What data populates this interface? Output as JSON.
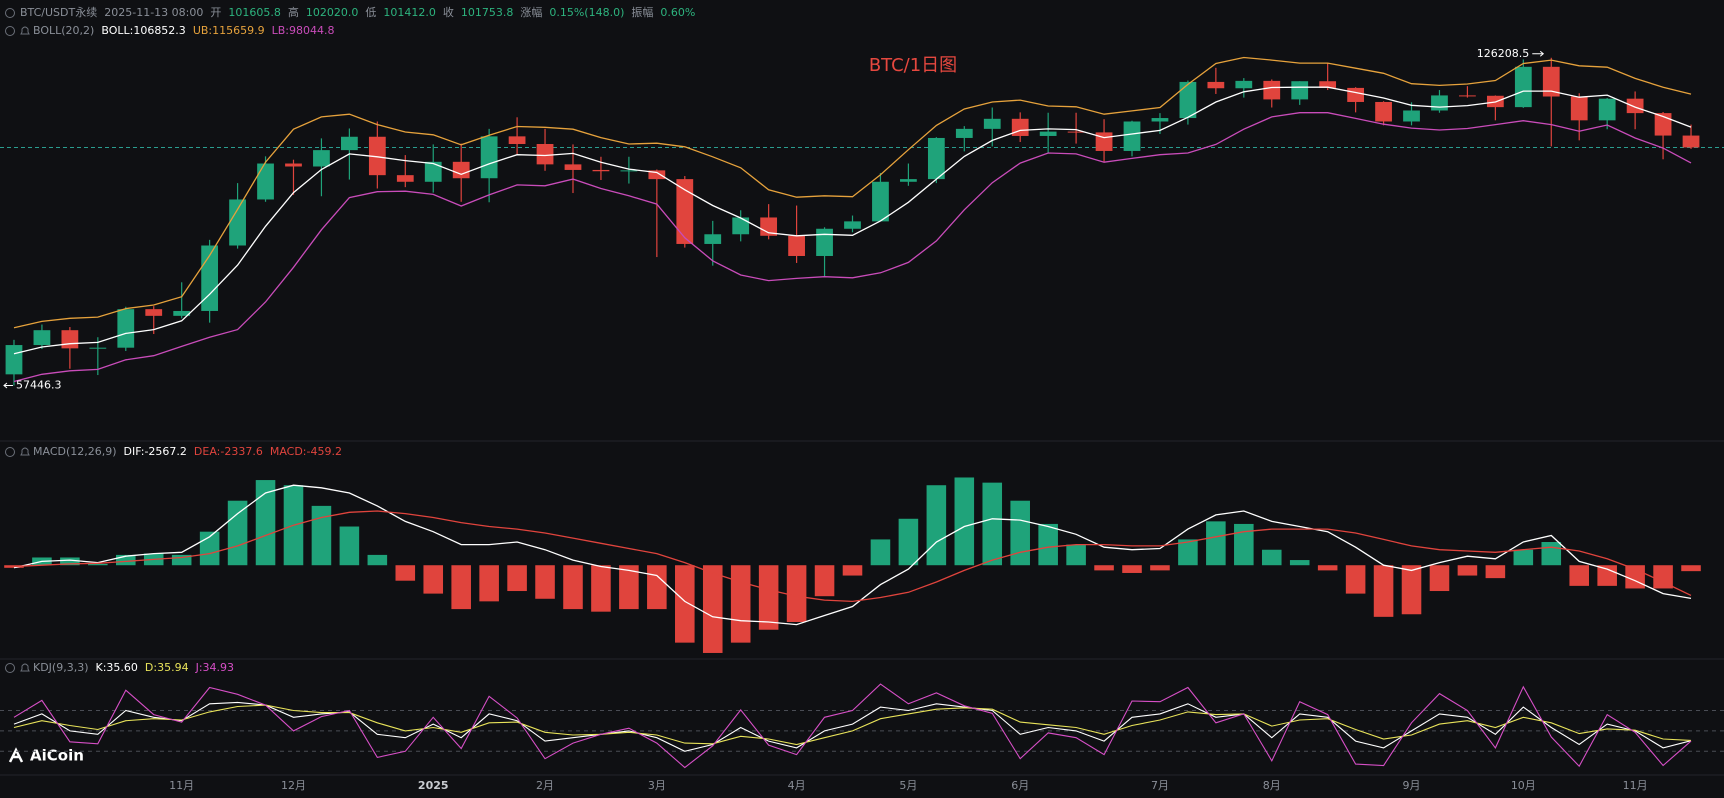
{
  "header": {
    "items": [
      {
        "text": "BTC/USDT永续",
        "color": "#8a8f98"
      },
      {
        "text": "2025-11-13 08:00",
        "color": "#8a8f98"
      },
      {
        "text": "开",
        "color": "#8a8f98"
      },
      {
        "text": "101605.8",
        "color": "#2db37e"
      },
      {
        "text": "高",
        "color": "#8a8f98"
      },
      {
        "text": "102020.0",
        "color": "#2db37e"
      },
      {
        "text": "低",
        "color": "#8a8f98"
      },
      {
        "text": "101412.0",
        "color": "#2db37e"
      },
      {
        "text": "收",
        "color": "#8a8f98"
      },
      {
        "text": "101753.8",
        "color": "#2db37e"
      },
      {
        "text": "涨幅",
        "color": "#8a8f98"
      },
      {
        "text": "0.15%(148.0)",
        "color": "#2db37e"
      },
      {
        "text": "振幅",
        "color": "#8a8f98"
      },
      {
        "text": "0.60%",
        "color": "#2db37e"
      }
    ]
  },
  "watermark": "AiCoin",
  "chart_data": [
    {
      "type": "candlestick",
      "title": "BTC/1日图",
      "title_color": "#e5483f",
      "indicator": "BOLL(20,2)",
      "readouts": [
        {
          "text": "BOLL:106852.3",
          "color": "#ffffff"
        },
        {
          "text": "UB:115659.9",
          "color": "#e6a23c"
        },
        {
          "text": "LB:98044.8",
          "color": "#c94cba"
        }
      ],
      "log": true,
      "ylim": [
        51000,
        145000
      ],
      "up_color": "#1fa37a",
      "down_color": "#e0443d",
      "last_line_color": "#2a9d8f",
      "categories": [
        null,
        null,
        null,
        null,
        null,
        null,
        "11月",
        null,
        null,
        null,
        "12月",
        null,
        null,
        null,
        null,
        "2025",
        null,
        null,
        null,
        "2月",
        null,
        null,
        null,
        "3月",
        null,
        null,
        null,
        null,
        "4月",
        null,
        null,
        null,
        "5月",
        null,
        null,
        null,
        "6月",
        null,
        null,
        null,
        null,
        "7月",
        null,
        null,
        null,
        "8月",
        null,
        null,
        null,
        null,
        "9月",
        null,
        null,
        null,
        "10月",
        null,
        null,
        null,
        "11月",
        null,
        null
      ],
      "open": [
        59000,
        63300,
        65600,
        62800,
        62900,
        69000,
        67900,
        68700,
        80400,
        89800,
        97900,
        97200,
        101100,
        104400,
        95200,
        93700,
        98300,
        94500,
        104500,
        102600,
        97700,
        96400,
        96100,
        96300,
        94300,
        80700,
        82600,
        86000,
        82300,
        78400,
        83700,
        85200,
        93700,
        94300,
        104100,
        106400,
        109000,
        104600,
        105700,
        105500,
        100900,
        108300,
        109200,
        119100,
        117300,
        119400,
        114200,
        119300,
        117400,
        113500,
        108300,
        111200,
        115300,
        115200,
        112100,
        123500,
        115000,
        108600,
        114400,
        110500,
        104700
      ],
      "high": [
        64100,
        66500,
        66100,
        64500,
        69400,
        69500,
        73600,
        81500,
        93400,
        99600,
        98800,
        104000,
        106500,
        108300,
        99900,
        102500,
        102700,
        106400,
        109400,
        106400,
        102500,
        99500,
        99500,
        96500,
        95000,
        85300,
        87500,
        88800,
        88500,
        84000,
        86400,
        95700,
        97900,
        104300,
        107100,
        112000,
        110700,
        110600,
        110600,
        108900,
        108500,
        110500,
        119500,
        123200,
        120200,
        119800,
        119300,
        124500,
        117600,
        113700,
        113400,
        116800,
        117900,
        115300,
        125700,
        126208.5,
        115900,
        114600,
        116400,
        110800,
        107500
      ],
      "low": [
        57446.3,
        62700,
        59800,
        58900,
        62400,
        65000,
        67500,
        66800,
        79800,
        89300,
        90800,
        90500,
        94200,
        92200,
        92500,
        91300,
        89300,
        89200,
        100100,
        96200,
        91200,
        94100,
        93300,
        78200,
        80000,
        76600,
        81200,
        81600,
        77100,
        74500,
        83000,
        85200,
        92800,
        93400,
        100800,
        102000,
        103100,
        100400,
        102700,
        98200,
        99600,
        105100,
        107500,
        115700,
        114700,
        112000,
        112700,
        116800,
        110700,
        107300,
        107300,
        110600,
        114700,
        108600,
        111900,
        102000,
        103500,
        106300,
        106300,
        98900,
        101400
      ],
      "close": [
        63300,
        65600,
        62800,
        62900,
        69000,
        67900,
        68700,
        80400,
        89800,
        97900,
        97200,
        101100,
        104400,
        95200,
        93700,
        98300,
        94500,
        104500,
        102600,
        97700,
        96400,
        96100,
        96300,
        94300,
        80700,
        82600,
        86000,
        82300,
        78400,
        83700,
        85200,
        93700,
        94300,
        104100,
        106400,
        109000,
        104600,
        105700,
        105500,
        100900,
        108300,
        109200,
        119100,
        117300,
        119400,
        114200,
        119300,
        117400,
        113500,
        108300,
        111200,
        115300,
        115200,
        112100,
        123500,
        115000,
        108600,
        114400,
        110500,
        104700,
        101753.8
      ],
      "series": [
        {
          "color": "#ffffff",
          "values": [
            62000,
            63000,
            63500,
            63700,
            65100,
            65700,
            67100,
            71500,
            76700,
            84200,
            91300,
            96500,
            100200,
            99500,
            98600,
            97900,
            95400,
            97800,
            100000,
            99800,
            100300,
            98200,
            96600,
            95800,
            91900,
            88500,
            85900,
            82900,
            82300,
            82600,
            82400,
            85300,
            89200,
            94300,
            99600,
            103500,
            106000,
            106400,
            106200,
            104200,
            105100,
            106000,
            109400,
            113500,
            116300,
            117500,
            117600,
            117600,
            116100,
            114600,
            112600,
            112100,
            112500,
            113500,
            116500,
            116500,
            114800,
            115400,
            112100,
            109600,
            106852.3
          ]
        },
        {
          "color": "#e6a23c",
          "values": [
            66000,
            67000,
            67500,
            67700,
            69100,
            69700,
            71100,
            78500,
            87700,
            98200,
            106300,
            109500,
            110200,
            107500,
            105600,
            104900,
            102400,
            104800,
            107000,
            106800,
            106300,
            104200,
            102600,
            102800,
            101900,
            99500,
            96900,
            91900,
            90300,
            90600,
            90400,
            95300,
            101200,
            107300,
            111600,
            113500,
            114000,
            112400,
            112200,
            110200,
            111100,
            112000,
            118400,
            124500,
            126300,
            125500,
            124600,
            124600,
            123100,
            121600,
            118600,
            118100,
            118500,
            119500,
            124500,
            125500,
            123800,
            123400,
            120100,
            117600,
            115659.9
          ]
        },
        {
          "color": "#c94cba",
          "values": [
            58000,
            59000,
            59500,
            59700,
            61100,
            61700,
            63100,
            64500,
            65700,
            70200,
            76300,
            83500,
            90200,
            91500,
            91600,
            90900,
            88400,
            90800,
            93000,
            92800,
            94300,
            92200,
            90600,
            88800,
            81900,
            77500,
            74900,
            73900,
            74300,
            74600,
            74400,
            75300,
            77200,
            81300,
            87600,
            93500,
            98000,
            100400,
            100200,
            98200,
            99100,
            100000,
            100400,
            102500,
            106300,
            109500,
            110600,
            110600,
            109100,
            107600,
            106600,
            106100,
            106500,
            107500,
            108500,
            107500,
            105800,
            107400,
            104100,
            101600,
            98044.8
          ]
        }
      ]
    },
    {
      "type": "bar",
      "indicator": "MACD(12,26,9)",
      "readouts": [
        {
          "text": "DIF:-2567.2",
          "color": "#ffffff"
        },
        {
          "text": "DEA:-2337.6",
          "color": "#e0443d"
        },
        {
          "text": "MACD:-459.2",
          "color": "#e0443d"
        }
      ],
      "ylim": [
        -7500,
        8000
      ],
      "up_color": "#1fa37a",
      "down_color": "#e0443d",
      "values": [
        -200,
        600,
        600,
        100,
        800,
        900,
        800,
        2600,
        5000,
        6600,
        6200,
        4600,
        3000,
        800,
        -1200,
        -2200,
        -3400,
        -2800,
        -2000,
        -2600,
        -3400,
        -3600,
        -3400,
        -3400,
        -6000,
        -6800,
        -6000,
        -5000,
        -4400,
        -2400,
        -800,
        2000,
        3600,
        6200,
        6800,
        6400,
        5000,
        3200,
        1600,
        -400,
        -600,
        -400,
        2000,
        3400,
        3200,
        1200,
        400,
        -400,
        -2200,
        -4000,
        -3800,
        -2000,
        -800,
        -1000,
        1200,
        1800,
        -1600,
        -1600,
        -1800,
        -1800,
        -459.2
      ],
      "series": [
        {
          "color": "#ffffff",
          "values": [
            -200,
            300,
            400,
            200,
            700,
            900,
            1000,
            2200,
            4000,
            5600,
            6200,
            6000,
            5600,
            4600,
            3400,
            2600,
            1600,
            1600,
            1800,
            1200,
            400,
            -100,
            -400,
            -800,
            -2800,
            -4000,
            -4300,
            -4400,
            -4600,
            -3900,
            -3200,
            -1500,
            -300,
            1800,
            3000,
            3600,
            3500,
            3000,
            2400,
            1400,
            1200,
            1300,
            2800,
            3900,
            4200,
            3400,
            3000,
            2600,
            1400,
            0,
            -400,
            200,
            700,
            500,
            1800,
            2300,
            300,
            -300,
            -1200,
            -2200,
            -2567.2
          ]
        },
        {
          "color": "#e0443d",
          "values": [
            -100,
            0,
            100,
            150,
            300,
            450,
            600,
            900,
            1500,
            2300,
            3100,
            3700,
            4100,
            4200,
            4000,
            3700,
            3300,
            3000,
            2800,
            2500,
            2100,
            1700,
            1300,
            900,
            200,
            -600,
            -1300,
            -1900,
            -2400,
            -2700,
            -2800,
            -2500,
            -2100,
            -1300,
            -400,
            400,
            1000,
            1400,
            1600,
            1600,
            1500,
            1500,
            1800,
            2200,
            2600,
            2800,
            2800,
            2800,
            2500,
            2000,
            1500,
            1200,
            1100,
            1000,
            1200,
            1400,
            1100,
            500,
            -300,
            -1300,
            -2337.6
          ]
        }
      ]
    },
    {
      "type": "line",
      "indicator": "KDJ(9,3,3)",
      "readouts": [
        {
          "text": "K:35.60",
          "color": "#ffffff"
        },
        {
          "text": "D:35.94",
          "color": "#e8e35a"
        },
        {
          "text": "J:34.93",
          "color": "#d64fc6"
        }
      ],
      "ylim": [
        -15,
        125
      ],
      "hlines": [
        20,
        50,
        80
      ],
      "series": [
        {
          "color": "#ffffff",
          "values": [
            60,
            75,
            50,
            45,
            80,
            70,
            65,
            90,
            92,
            88,
            70,
            75,
            78,
            45,
            40,
            60,
            40,
            75,
            65,
            35,
            40,
            45,
            50,
            40,
            20,
            30,
            55,
            35,
            25,
            50,
            60,
            85,
            80,
            90,
            85,
            80,
            45,
            55,
            50,
            35,
            70,
            75,
            90,
            70,
            75,
            40,
            75,
            70,
            35,
            25,
            50,
            75,
            70,
            45,
            85,
            55,
            30,
            60,
            50,
            25,
            35.6
          ]
        },
        {
          "color": "#e8e35a",
          "values": [
            55,
            65,
            58,
            52,
            65,
            68,
            66,
            78,
            86,
            88,
            80,
            77,
            77,
            62,
            50,
            55,
            48,
            62,
            63,
            48,
            44,
            45,
            48,
            44,
            32,
            31,
            42,
            38,
            30,
            40,
            50,
            68,
            75,
            82,
            84,
            82,
            63,
            59,
            55,
            45,
            58,
            66,
            78,
            74,
            75,
            57,
            66,
            68,
            52,
            38,
            44,
            60,
            65,
            55,
            70,
            62,
            46,
            53,
            51,
            38,
            35.94
          ]
        },
        {
          "color": "#d64fc6",
          "values": [
            70,
            95,
            34,
            31,
            110,
            74,
            63,
            114,
            104,
            88,
            50,
            71,
            80,
            11,
            20,
            70,
            24,
            101,
            69,
            9,
            32,
            45,
            54,
            32,
            -4,
            28,
            81,
            29,
            15,
            70,
            80,
            119,
            90,
            106,
            87,
            76,
            9,
            47,
            40,
            15,
            94,
            93,
            114,
            62,
            75,
            6,
            93,
            74,
            1,
            -1,
            62,
            105,
            80,
            25,
            115,
            41,
            -2,
            74,
            48,
            -1,
            34.93
          ]
        }
      ]
    }
  ]
}
